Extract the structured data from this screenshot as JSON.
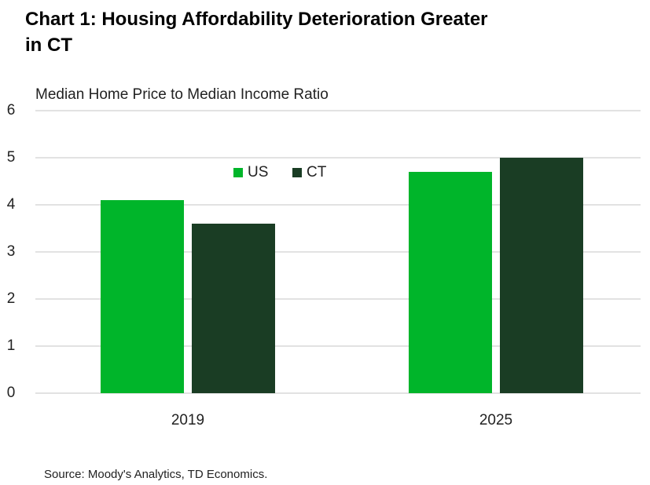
{
  "chart_data": {
    "type": "bar",
    "title": "Chart 1: Housing Affordability Deterioration Greater in CT",
    "subtitle": "Median Home Price to Median Income Ratio",
    "categories": [
      "2019",
      "2025"
    ],
    "series": [
      {
        "name": "US",
        "color": "#00b52a",
        "values": [
          4.1,
          4.7
        ]
      },
      {
        "name": "CT",
        "color": "#1a3d24",
        "values": [
          3.6,
          5.0
        ]
      }
    ],
    "ylim": [
      0,
      6
    ],
    "yticks": [
      0,
      1,
      2,
      3,
      4,
      5,
      6
    ],
    "grid": true,
    "legend": "top",
    "source": "Source: Moody's Analytics, TD Economics."
  }
}
